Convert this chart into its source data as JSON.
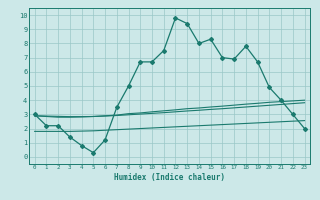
{
  "x": [
    0,
    1,
    2,
    3,
    4,
    5,
    6,
    7,
    8,
    9,
    10,
    11,
    12,
    13,
    14,
    15,
    16,
    17,
    18,
    19,
    20,
    21,
    22,
    23
  ],
  "y_main": [
    3.0,
    2.2,
    2.2,
    1.4,
    0.8,
    0.3,
    1.2,
    3.5,
    5.0,
    6.7,
    6.7,
    7.5,
    9.8,
    9.4,
    8.0,
    8.3,
    7.0,
    6.9,
    7.8,
    6.7,
    4.9,
    4.0,
    3.0,
    2.0
  ],
  "y_line1": [
    2.9,
    2.85,
    2.8,
    2.8,
    2.82,
    2.85,
    2.9,
    2.95,
    3.05,
    3.1,
    3.18,
    3.25,
    3.32,
    3.4,
    3.45,
    3.52,
    3.58,
    3.65,
    3.72,
    3.78,
    3.85,
    3.9,
    3.95,
    4.0
  ],
  "y_line2": [
    2.9,
    2.88,
    2.86,
    2.84,
    2.84,
    2.85,
    2.88,
    2.92,
    2.97,
    3.02,
    3.07,
    3.12,
    3.18,
    3.24,
    3.29,
    3.35,
    3.4,
    3.46,
    3.52,
    3.58,
    3.64,
    3.7,
    3.76,
    3.82
  ],
  "y_line3": [
    1.8,
    1.8,
    1.8,
    1.8,
    1.82,
    1.84,
    1.88,
    1.92,
    1.96,
    2.0,
    2.04,
    2.08,
    2.12,
    2.16,
    2.2,
    2.24,
    2.28,
    2.32,
    2.36,
    2.4,
    2.44,
    2.48,
    2.52,
    2.56
  ],
  "color": "#1a7a6e",
  "bg_color": "#cce8e8",
  "grid_color": "#9ac8c8",
  "xlabel": "Humidex (Indice chaleur)",
  "xlim": [
    -0.5,
    23.5
  ],
  "ylim": [
    -0.5,
    10.5
  ],
  "xticks": [
    0,
    1,
    2,
    3,
    4,
    5,
    6,
    7,
    8,
    9,
    10,
    11,
    12,
    13,
    14,
    15,
    16,
    17,
    18,
    19,
    20,
    21,
    22,
    23
  ],
  "yticks": [
    0,
    1,
    2,
    3,
    4,
    5,
    6,
    7,
    8,
    9,
    10
  ]
}
